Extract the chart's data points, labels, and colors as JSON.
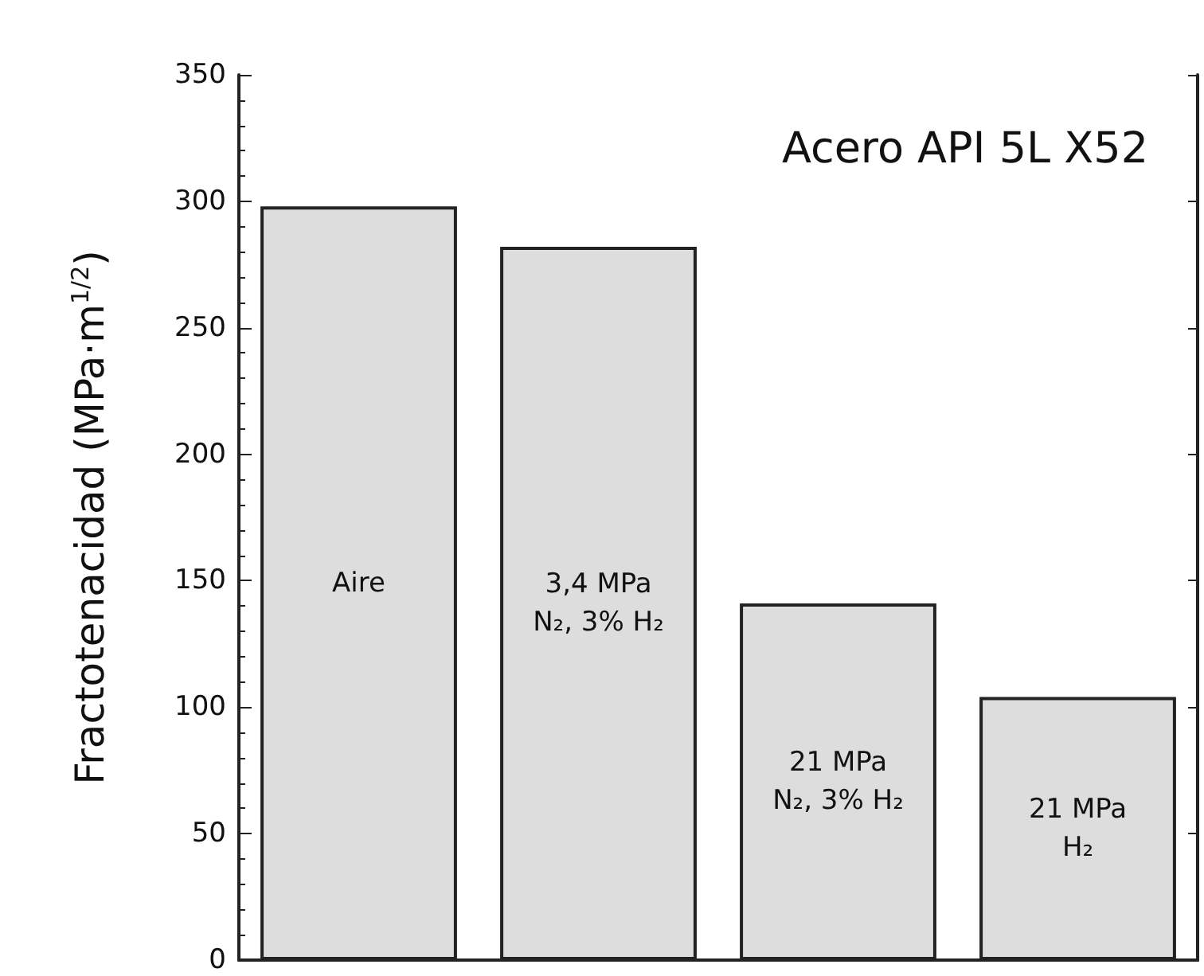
{
  "chart_data": {
    "type": "bar",
    "title": "Acero API 5L X52",
    "ylabel": "Fractotenacidad (MPa·m$^{1/2}$)",
    "categories": [
      "Aire",
      "3,4 MPa\nN₂, 3% H₂",
      "21 MPa\nN₂, 3% H₂",
      "21 MPa\nH₂"
    ],
    "values": [
      298,
      282,
      141,
      104
    ],
    "color": "#dcdddc",
    "ylim": [
      0,
      350
    ],
    "yticks": [
      0,
      50,
      100,
      150,
      200,
      250,
      300,
      350
    ],
    "grid": false
  }
}
